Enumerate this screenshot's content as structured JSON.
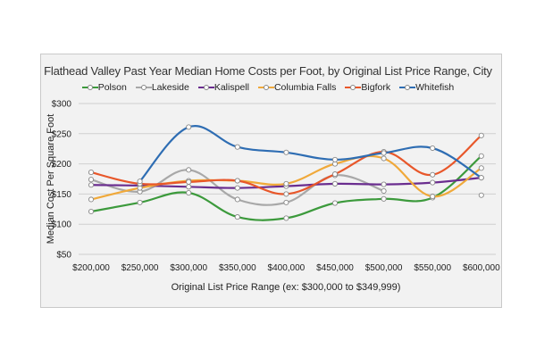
{
  "chart_data": {
    "type": "line",
    "title": "Flathead Valley Past Year Median Home Costs per Foot, by Original List Price Range, City",
    "xlabel": "Original List Price Range (ex: $300,000 to $349,999)",
    "ylabel": "Median Cost Per Square Foot",
    "categories": [
      "$200,000",
      "$250,000",
      "$300,000",
      "$350,000",
      "$400,000",
      "$450,000",
      "$500,000",
      "$550,000",
      "$600,000"
    ],
    "y_ticks": [
      "$50",
      "$100",
      "$150",
      "$200",
      "$250",
      "$300"
    ],
    "ylim": [
      50,
      300
    ],
    "grid": true,
    "legend_position": "top",
    "series": [
      {
        "name": "Polson",
        "color": "#3c9a3c",
        "values": [
          121,
          136,
          152,
          112,
          110,
          135,
          142,
          144,
          213
        ]
      },
      {
        "name": "Lakeside",
        "color": "#a8a8a8",
        "values": [
          174,
          154,
          190,
          141,
          136,
          181,
          155,
          null,
          148
        ]
      },
      {
        "name": "Kalispell",
        "color": "#6a2d8f",
        "values": [
          165,
          164,
          162,
          160,
          163,
          167,
          166,
          169,
          177
        ]
      },
      {
        "name": "Columbia Falls",
        "color": "#f0a93a",
        "values": [
          141,
          160,
          172,
          172,
          167,
          200,
          209,
          146,
          193
        ]
      },
      {
        "name": "Bigfork",
        "color": "#e8572a",
        "values": [
          186,
          167,
          170,
          172,
          150,
          183,
          220,
          182,
          247
        ]
      },
      {
        "name": "Whitefish",
        "color": "#2e6db3",
        "values": [
          null,
          171,
          261,
          228,
          219,
          207,
          218,
          226,
          177
        ]
      }
    ]
  }
}
